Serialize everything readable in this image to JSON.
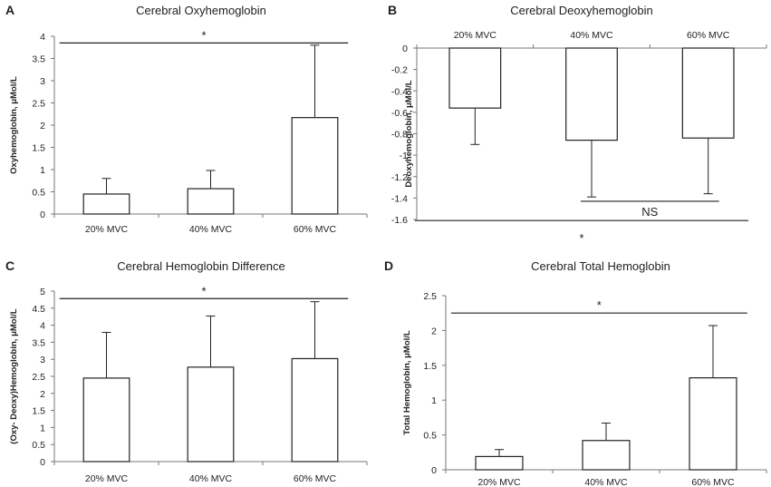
{
  "chart_data": [
    {
      "letter": "A",
      "type": "bar",
      "title": "Cerebral Oxyhemoglobin",
      "ylabel": "Oxyhemoglobin, μMol/L",
      "categories": [
        "20% MVC",
        "40% MVC",
        "60% MVC"
      ],
      "values": [
        0.45,
        0.57,
        2.17
      ],
      "errors": [
        0.35,
        0.41,
        1.63
      ],
      "ylim": [
        0,
        4
      ],
      "yticks": [
        "0",
        "0.5",
        "1",
        "1.5",
        "2",
        "2.5",
        "3",
        "3.5",
        "4"
      ],
      "annotations": [
        {
          "text": "*",
          "from": 0,
          "to": 2,
          "y": 3.85
        }
      ]
    },
    {
      "letter": "B",
      "type": "bar",
      "title": "Cerebral Deoxyhemoglobin",
      "ylabel": "Deoxyhemoglobin, μMol/L",
      "categories": [
        "20% MVC",
        "40% MVC",
        "60% MVC"
      ],
      "values": [
        -0.56,
        -0.86,
        -0.84
      ],
      "errors": [
        0.34,
        0.53,
        0.52
      ],
      "ylim": [
        -1.6,
        0
      ],
      "yticks": [
        "-1.6",
        "-1.4",
        "-1.2",
        "-1",
        "-0.8",
        "-0.6",
        "-0.4",
        "-0.2",
        "0"
      ],
      "annotations": [
        {
          "text": "NS",
          "from": 1,
          "to": 2,
          "y": -1.43
        },
        {
          "text": "*",
          "from": 0,
          "to": 2,
          "y": -1.61
        }
      ]
    },
    {
      "letter": "C",
      "type": "bar",
      "title": "Cerebral Hemoglobin Difference",
      "ylabel": "(Oxy- Deoxy)Hemoglobin, μMol/L",
      "categories": [
        "20% MVC",
        "40% MVC",
        "60% MVC"
      ],
      "values": [
        2.45,
        2.77,
        3.02
      ],
      "errors": [
        1.34,
        1.5,
        1.67
      ],
      "ylim": [
        0,
        5
      ],
      "yticks": [
        "0",
        "0.5",
        "1",
        "1.5",
        "2",
        "2.5",
        "3",
        "3.5",
        "4",
        "4.5",
        "5"
      ],
      "annotations": [
        {
          "text": "*",
          "from": 0,
          "to": 2,
          "y": 4.78
        }
      ]
    },
    {
      "letter": "D",
      "type": "bar",
      "title": "Cerebral Total  Hemoglobin",
      "ylabel": "Total Hemoglobin, μMol/L",
      "categories": [
        "20% MVC",
        "40% MVC",
        "60% MVC"
      ],
      "values": [
        0.19,
        0.42,
        1.32
      ],
      "errors": [
        0.1,
        0.25,
        0.75
      ],
      "ylim": [
        0,
        2.5
      ],
      "yticks": [
        "0",
        "0.5",
        "1",
        "1.5",
        "2",
        "2.5"
      ],
      "annotations": [
        {
          "text": "*",
          "from": 0,
          "to": 2,
          "y": 2.25
        }
      ]
    }
  ]
}
